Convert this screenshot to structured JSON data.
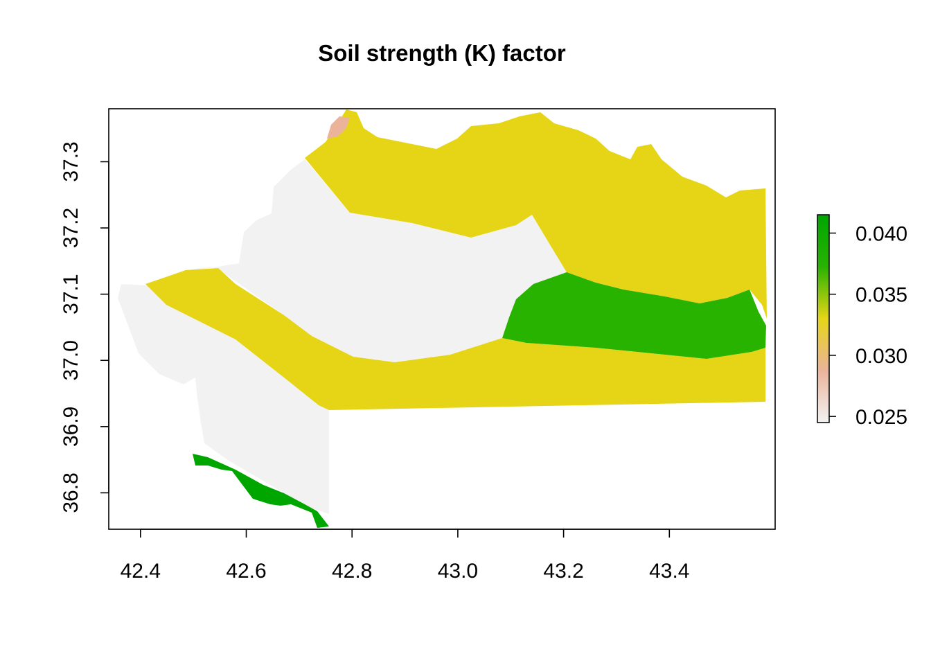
{
  "title": "Soil strength (K) factor",
  "x_axis": {
    "ticks": [
      42.4,
      42.6,
      42.8,
      43.0,
      43.2,
      43.4
    ],
    "labels": [
      "42.4",
      "42.6",
      "42.8",
      "43.0",
      "43.2",
      "43.4"
    ],
    "range": [
      42.34,
      43.6
    ]
  },
  "y_axis": {
    "ticks": [
      36.8,
      36.9,
      37.0,
      37.1,
      37.2,
      37.3
    ],
    "labels": [
      "36.8",
      "36.9",
      "37.0",
      "37.1",
      "37.2",
      "37.3"
    ],
    "range": [
      36.745,
      37.38
    ]
  },
  "legend": {
    "position": "right",
    "range": [
      0.0245,
      0.0415
    ],
    "ticks": [
      0.025,
      0.03,
      0.035,
      0.04
    ],
    "labels": [
      "0.025",
      "0.030",
      "0.035",
      "0.040"
    ],
    "gradient": [
      "#f2f2f2",
      "#ebb39a",
      "#e6d517",
      "#28b300",
      "#00a600"
    ]
  },
  "regions": [
    {
      "value": 0.025,
      "color": "#f2f2f2",
      "label": "west and central plain"
    },
    {
      "value": 0.03,
      "color": "#ebb39a",
      "label": "northern tip"
    },
    {
      "value": 0.034,
      "color": "#e6d517",
      "label": "northern and southern belts"
    },
    {
      "value": 0.039,
      "color": "#28b300",
      "label": "eastern lobe"
    },
    {
      "value": 0.041,
      "color": "#00a600",
      "label": "southwestern strip"
    }
  ]
}
